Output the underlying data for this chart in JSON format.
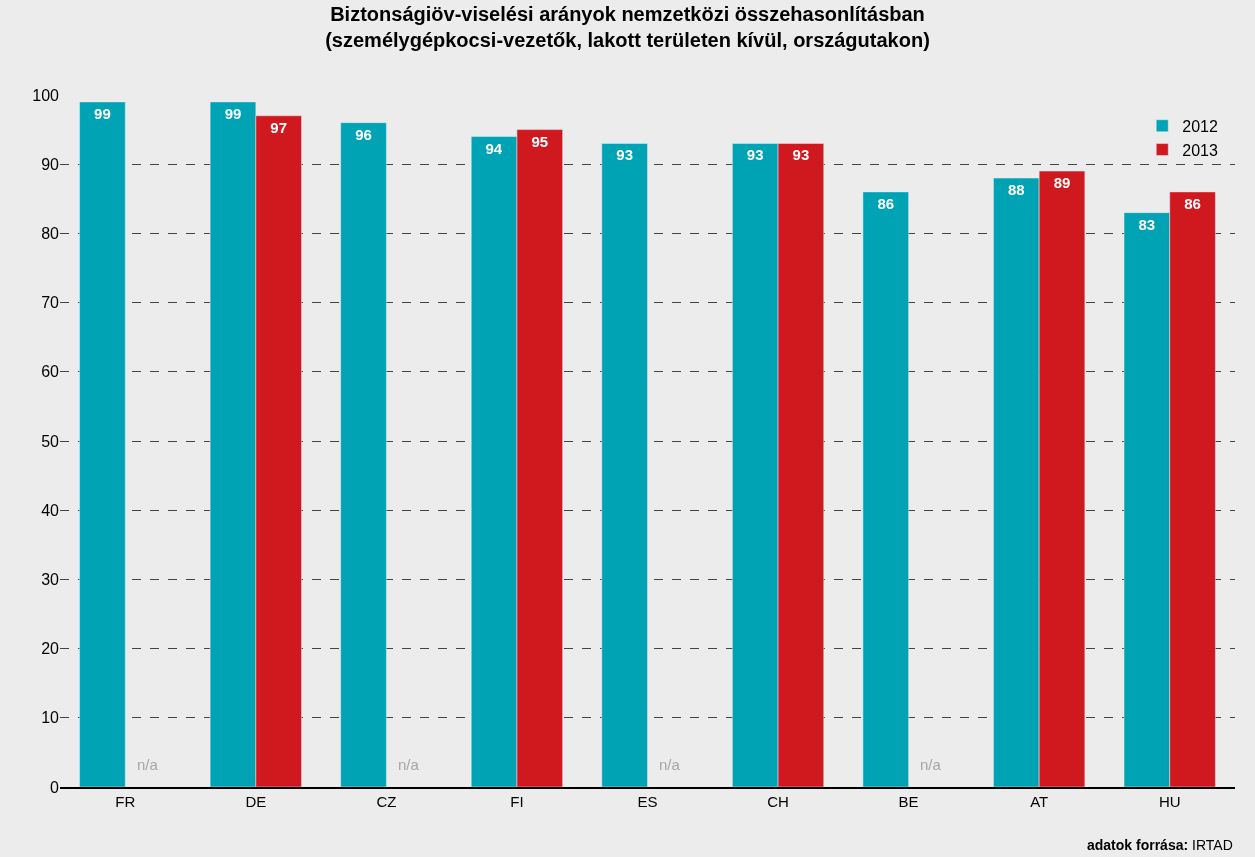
{
  "chart_data": {
    "type": "bar",
    "title": "Biztonságiöv-viselési arányok nemzetközi összehasonlításban\n(személygépkocsi-vezetők, lakott területen kívül, országutakon)",
    "categories": [
      "FR",
      "DE",
      "CZ",
      "FI",
      "ES",
      "CH",
      "BE",
      "AT",
      "HU"
    ],
    "series": [
      {
        "name": "2012",
        "color": "#00a3b4",
        "values": [
          99,
          99,
          96,
          94,
          93,
          93,
          86,
          88,
          83
        ],
        "value_labels": [
          "99",
          "99",
          "96",
          "94",
          "93",
          "93",
          "86",
          "88",
          "83"
        ]
      },
      {
        "name": "2013",
        "color": "#d0191f",
        "values": [
          null,
          97,
          null,
          95,
          null,
          93,
          null,
          89,
          86
        ],
        "value_labels": [
          "n/a",
          "97",
          "n/a",
          "95",
          "n/a",
          "93",
          "n/a",
          "89",
          "86"
        ]
      }
    ],
    "ylim": [
      0,
      100
    ],
    "yticks": [
      0,
      10,
      20,
      30,
      40,
      50,
      60,
      70,
      80,
      90,
      100
    ],
    "grid": "y",
    "legend": "top right",
    "annotations": [
      "adatok forrása: IRTAD"
    ]
  }
}
